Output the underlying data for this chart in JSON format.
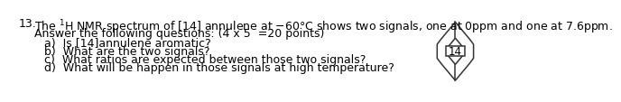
{
  "title_num": "13.",
  "title_text": "The ¹H NMR spectrum of [14] annulene at -60°C shows two signals, one at 0ppm and one at 7.6ppm.",
  "subtitle": "Answer the following questions: (4 x 5  =20 points)",
  "items": [
    "a)  Is [14]annulene aromatic?",
    "b)  What are the two signals?",
    "c)  What ratios are expected between those two signals?",
    "d)  What will be happen in those signals at high temperature?"
  ],
  "annulene_label": "14",
  "bg_color": "#ffffff",
  "text_color": "#000000",
  "line_color": "#333333",
  "font_size": 9.0,
  "lw": 1.1
}
